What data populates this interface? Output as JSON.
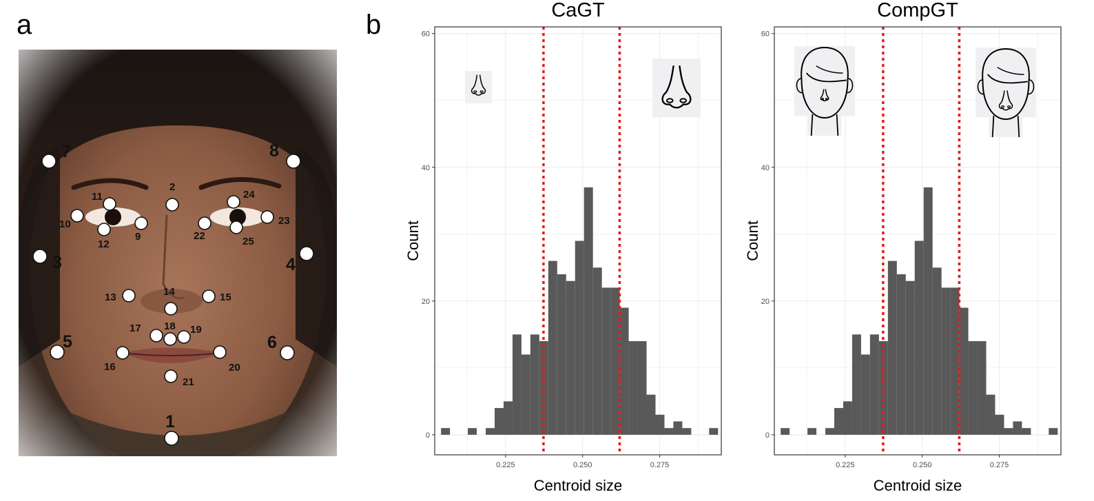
{
  "panels": {
    "a": "a",
    "b": "b"
  },
  "landmarks": {
    "1": "1",
    "2": "2",
    "3": "3",
    "4": "4",
    "5": "5",
    "6": "6",
    "7": "7",
    "8": "8",
    "9": "9",
    "10": "10",
    "11": "11",
    "12": "12",
    "13": "13",
    "14": "14",
    "15": "15",
    "16": "16",
    "17": "17",
    "18": "18",
    "19": "19",
    "20": "20",
    "21": "21",
    "22": "22",
    "23": "23",
    "24": "24",
    "25": "25"
  },
  "colors": {
    "bar": "#595959",
    "threshold_line": "#e41a1c",
    "grid": "#ebebeb",
    "panel_border": "#333333"
  },
  "chart_data": [
    {
      "type": "bar",
      "title": "CaGT",
      "xlabel": "Centroid size",
      "ylabel": "Count",
      "xlim": [
        0.202,
        0.295
      ],
      "ylim": [
        -3,
        61
      ],
      "xticks": [
        0.225,
        0.25,
        0.275
      ],
      "xtick_labels": [
        "0.225",
        "0.250",
        "0.275"
      ],
      "yticks": [
        0,
        20,
        40,
        60
      ],
      "ytick_labels": [
        "0",
        "20",
        "40",
        "60"
      ],
      "grid": true,
      "bin_width": 0.0029,
      "bins": [
        {
          "x": 0.2055,
          "count": 1
        },
        {
          "x": 0.2142,
          "count": 1
        },
        {
          "x": 0.22,
          "count": 1
        },
        {
          "x": 0.2229,
          "count": 4
        },
        {
          "x": 0.2258,
          "count": 5
        },
        {
          "x": 0.2287,
          "count": 15
        },
        {
          "x": 0.2316,
          "count": 12
        },
        {
          "x": 0.2345,
          "count": 15
        },
        {
          "x": 0.2374,
          "count": 14
        },
        {
          "x": 0.2403,
          "count": 26
        },
        {
          "x": 0.2432,
          "count": 24
        },
        {
          "x": 0.2461,
          "count": 23
        },
        {
          "x": 0.249,
          "count": 29
        },
        {
          "x": 0.2519,
          "count": 37
        },
        {
          "x": 0.2548,
          "count": 25
        },
        {
          "x": 0.2577,
          "count": 22
        },
        {
          "x": 0.2606,
          "count": 22
        },
        {
          "x": 0.2635,
          "count": 19
        },
        {
          "x": 0.2664,
          "count": 14
        },
        {
          "x": 0.2693,
          "count": 14
        },
        {
          "x": 0.2722,
          "count": 6
        },
        {
          "x": 0.2751,
          "count": 3
        },
        {
          "x": 0.278,
          "count": 1
        },
        {
          "x": 0.2809,
          "count": 2
        },
        {
          "x": 0.2838,
          "count": 1
        },
        {
          "x": 0.2925,
          "count": 1
        }
      ],
      "thresholds": [
        0.2373,
        0.262
      ],
      "icon_left": "small-nose-icon",
      "icon_right": "large-nose-icon"
    },
    {
      "type": "bar",
      "title": "CompGT",
      "xlabel": "Centroid size",
      "ylabel": "Count",
      "xlim": [
        0.202,
        0.295
      ],
      "ylim": [
        -3,
        61
      ],
      "xticks": [
        0.225,
        0.25,
        0.275
      ],
      "xtick_labels": [
        "0.225",
        "0.250",
        "0.275"
      ],
      "yticks": [
        0,
        20,
        40,
        60
      ],
      "ytick_labels": [
        "0",
        "20",
        "40",
        "60"
      ],
      "grid": true,
      "bin_width": 0.0029,
      "bins": [
        {
          "x": 0.2055,
          "count": 1
        },
        {
          "x": 0.2142,
          "count": 1
        },
        {
          "x": 0.22,
          "count": 1
        },
        {
          "x": 0.2229,
          "count": 4
        },
        {
          "x": 0.2258,
          "count": 5
        },
        {
          "x": 0.2287,
          "count": 15
        },
        {
          "x": 0.2316,
          "count": 12
        },
        {
          "x": 0.2345,
          "count": 15
        },
        {
          "x": 0.2374,
          "count": 14
        },
        {
          "x": 0.2403,
          "count": 26
        },
        {
          "x": 0.2432,
          "count": 24
        },
        {
          "x": 0.2461,
          "count": 23
        },
        {
          "x": 0.249,
          "count": 29
        },
        {
          "x": 0.2519,
          "count": 37
        },
        {
          "x": 0.2548,
          "count": 25
        },
        {
          "x": 0.2577,
          "count": 22
        },
        {
          "x": 0.2606,
          "count": 22
        },
        {
          "x": 0.2635,
          "count": 19
        },
        {
          "x": 0.2664,
          "count": 14
        },
        {
          "x": 0.2693,
          "count": 14
        },
        {
          "x": 0.2722,
          "count": 6
        },
        {
          "x": 0.2751,
          "count": 3
        },
        {
          "x": 0.278,
          "count": 1
        },
        {
          "x": 0.2809,
          "count": 2
        },
        {
          "x": 0.2838,
          "count": 1
        },
        {
          "x": 0.2925,
          "count": 1
        }
      ],
      "thresholds": [
        0.2373,
        0.262
      ],
      "icon_left": "face-small-nose-icon",
      "icon_right": "face-large-nose-icon"
    }
  ]
}
